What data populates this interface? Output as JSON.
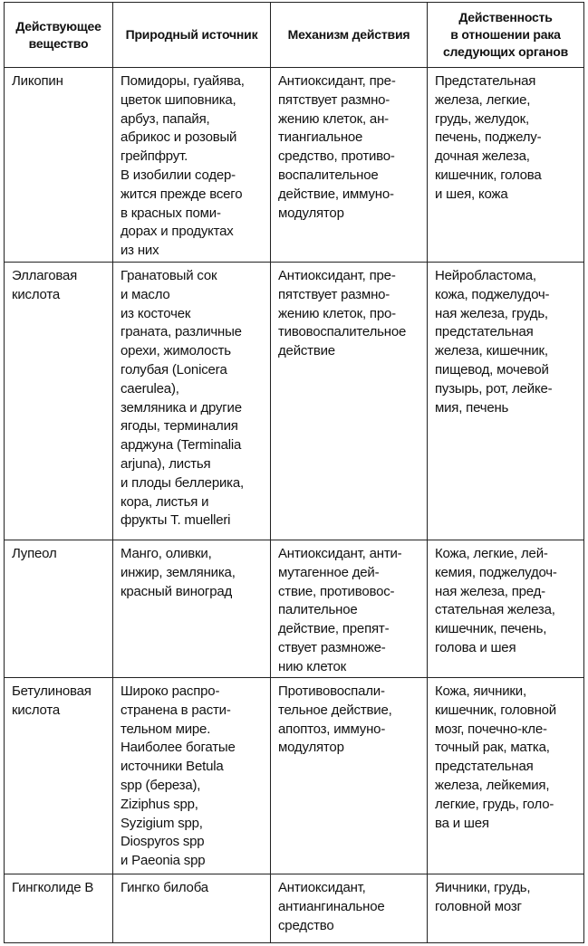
{
  "headers": [
    "Действующее\nвещество",
    "Природный источник",
    "Механизм действия",
    "Действенность\nв отношении рака\nследующих органов"
  ],
  "rows": [
    {
      "substance": "Ликопин",
      "source": "Помидоры, гуайява,\nцветок шиповника,\nарбуз, папайя,\nабрикос и розовый\nгрейпфрут.\nВ изобилии содер-\nжится прежде всего\nв красных поми-\nдорах и продуктах\nиз них",
      "mechanism": "Антиоксидант, пре-\nпятствует размно-\nжению клеток, ан-\nтиангиальное\nсредство, противо-\nвоспалительное\nдействие, иммуно-\nмодулятор",
      "organs": "Предстательная\nжелеза, легкие,\nгрудь, желудок,\nпечень, поджелу-\nдочная железа,\nкишечник, голова\nи шея, кожа"
    },
    {
      "substance": "Эллаговая\nкислота",
      "source": "Гранатовый сок\nи масло\nиз косточек\nграната, различные\nорехи, жимолость\nголубая (Lonicera\ncaerulea),\nземляника и другие\nягоды, терминалия\nарджуна (Terminalia\narjuna), листья\nи плоды беллерика,\nкора, листья и\nфрукты T. muelleri",
      "mechanism": "Антиоксидант, пре-\nпятствует размно-\nжению клеток, про-\nтивовоспалительное\nдействие",
      "organs": "Нейробластома,\nкожа, поджелудоч-\nная железа, грудь,\nпредстательная\nжелеза, кишечник,\nпищевод, мочевой\nпузырь, рот, лейке-\nмия, печень"
    },
    {
      "substance": "Лупеол",
      "source": "Манго, оливки,\nинжир, земляника,\nкрасный виноград",
      "mechanism": "Антиоксидант, анти-\nмутагенное дей-\nствие, противовос-\nпалительное\nдействие, препят-\nствует размноже-\nнию клеток",
      "organs": "Кожа, легкие, лей-\nкемия, поджелудоч-\nная железа, пред-\nстательная железа,\nкишечник, печень,\nголова и шея"
    },
    {
      "substance": "Бетулиновая\nкислота",
      "source": "Широко распро-\nстранена в расти-\nтельном мире.\nНаиболее богатые\nисточники Betula\nspp (береза),\nZiziphus spp,\nSyzigium spp,\nDiospyros spp\nи Paeonia spp",
      "mechanism": "Противовоспали-\nтельное действие,\nапоптоз, иммуно-\nмодулятор",
      "organs": "Кожа, яичники,\nкишечник, головной\nмозг, почечно-кле-\nточный рак, матка,\nпредстательная\nжелеза, лейкемия,\nлегкие, грудь, голо-\nва и шея"
    },
    {
      "substance": "Гингколиде B",
      "source": "Гингко билоба",
      "mechanism": "Антиоксидант,\nантиангинальное\nсредство",
      "organs": "Яичники, грудь,\nголовной мозг"
    }
  ]
}
